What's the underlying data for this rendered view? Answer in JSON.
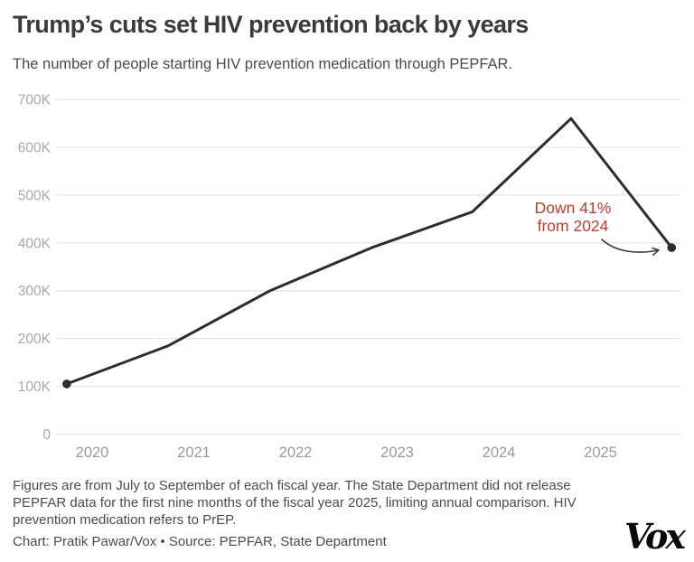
{
  "header": {
    "title": "Trump’s cuts set HIV prevention back by years",
    "subtitle": "The number of people starting HIV prevention medication through PEPFAR."
  },
  "chart_data": {
    "type": "line",
    "title": "Trump’s cuts set HIV prevention back by years",
    "subtitle": "The number of people starting HIV prevention medication through PEPFAR.",
    "xlabel": "",
    "ylabel": "",
    "ylim": [
      0,
      700000
    ],
    "grid": "horizontal",
    "y_ticks": [
      {
        "label": "700K",
        "value": 700000
      },
      {
        "label": "600K",
        "value": 600000
      },
      {
        "label": "500K",
        "value": 500000
      },
      {
        "label": "400K",
        "value": 400000
      },
      {
        "label": "300K",
        "value": 300000
      },
      {
        "label": "200K",
        "value": 200000
      },
      {
        "label": "100K",
        "value": 100000
      },
      {
        "label": "0",
        "value": 0
      }
    ],
    "x_ticks": [
      {
        "label": "2020",
        "year": 2020
      },
      {
        "label": "2021",
        "year": 2021
      },
      {
        "label": "2022",
        "year": 2022
      },
      {
        "label": "2023",
        "year": 2023
      },
      {
        "label": "2024",
        "year": 2024
      },
      {
        "label": "2025",
        "year": 2025
      }
    ],
    "series": [
      {
        "name": "People starting HIV prevention medication through PEPFAR",
        "points": [
          {
            "fiscal_year": "2019",
            "x_year": 2019.75,
            "value": 105000
          },
          {
            "fiscal_year": "2020",
            "x_year": 2020.75,
            "value": 185000
          },
          {
            "fiscal_year": "2021",
            "x_year": 2021.75,
            "value": 300000
          },
          {
            "fiscal_year": "2022",
            "x_year": 2022.75,
            "value": 390000
          },
          {
            "fiscal_year": "2023",
            "x_year": 2023.74,
            "value": 465000
          },
          {
            "fiscal_year": "2024",
            "x_year": 2024.71,
            "value": 660000
          },
          {
            "fiscal_year": "2025",
            "x_year": 2025.7,
            "value": 390000
          }
        ]
      }
    ],
    "annotation": {
      "lines": [
        "Down 41%",
        "from 2024"
      ],
      "color": "#c53b2e"
    },
    "colors": {
      "line": "#2d2d2d",
      "grid": "#e3e3e3",
      "y_label": "#a8a8a8",
      "x_label": "#9a9a9a",
      "arrow": "#3c3c3c"
    }
  },
  "footer": {
    "notes": "Figures are from July to September of each fiscal year. The State Department did not release PEPFAR data for the first nine months of the fiscal year 2025, limiting annual comparison. HIV prevention medication refers to PrEP.",
    "credit": "Chart: Pratik Pawar/Vox • Source: PEPFAR, State Department",
    "logo_text": "Vox"
  }
}
